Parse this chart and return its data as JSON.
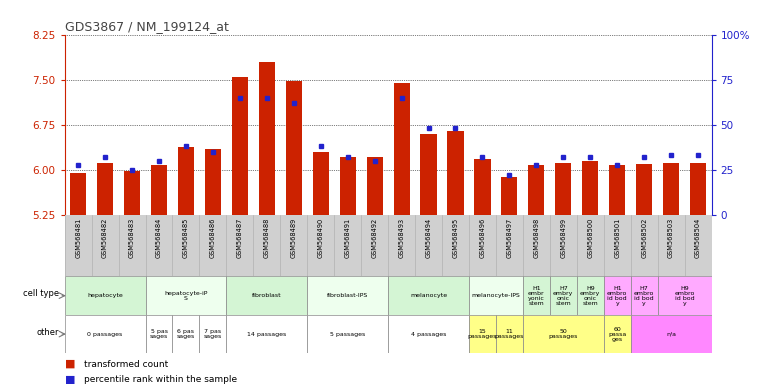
{
  "title": "GDS3867 / NM_199124_at",
  "samples": [
    "GSM568481",
    "GSM568482",
    "GSM568483",
    "GSM568484",
    "GSM568485",
    "GSM568486",
    "GSM568487",
    "GSM568488",
    "GSM568489",
    "GSM568490",
    "GSM568491",
    "GSM568492",
    "GSM568493",
    "GSM568494",
    "GSM568495",
    "GSM568496",
    "GSM568497",
    "GSM568498",
    "GSM568499",
    "GSM568500",
    "GSM568501",
    "GSM568502",
    "GSM568503",
    "GSM568504"
  ],
  "transformed_count": [
    5.95,
    6.12,
    5.98,
    6.08,
    6.38,
    6.35,
    7.55,
    7.8,
    7.48,
    6.3,
    6.22,
    6.22,
    7.45,
    6.6,
    6.65,
    6.18,
    5.88,
    6.08,
    6.12,
    6.15,
    6.08,
    6.1,
    6.12,
    6.12
  ],
  "percentile": [
    28,
    32,
    25,
    30,
    38,
    35,
    65,
    65,
    62,
    38,
    32,
    30,
    65,
    48,
    48,
    32,
    22,
    28,
    32,
    32,
    28,
    32,
    33,
    33
  ],
  "ylim_left": [
    5.25,
    8.25
  ],
  "ylim_right": [
    0,
    100
  ],
  "yticks_left": [
    5.25,
    6.0,
    6.75,
    7.5,
    8.25
  ],
  "yticks_right": [
    0,
    25,
    50,
    75,
    100
  ],
  "bar_color": "#cc2200",
  "dot_color": "#2222cc",
  "cell_types": [
    {
      "label": "hepatocyte",
      "start": 0,
      "end": 3,
      "color": "#d4f5d4"
    },
    {
      "label": "hepatocyte-iP\nS",
      "start": 3,
      "end": 6,
      "color": "#eeffee"
    },
    {
      "label": "fibroblast",
      "start": 6,
      "end": 9,
      "color": "#d4f5d4"
    },
    {
      "label": "fibroblast-IPS",
      "start": 9,
      "end": 12,
      "color": "#eeffee"
    },
    {
      "label": "melanocyte",
      "start": 12,
      "end": 15,
      "color": "#d4f5d4"
    },
    {
      "label": "melanocyte-IPS",
      "start": 15,
      "end": 17,
      "color": "#eeffee"
    },
    {
      "label": "H1\nembr\nyonic\nstem",
      "start": 17,
      "end": 18,
      "color": "#d4f5d4"
    },
    {
      "label": "H7\nembry\nonic\nstem",
      "start": 18,
      "end": 19,
      "color": "#d4f5d4"
    },
    {
      "label": "H9\nembry\nonic\nstem",
      "start": 19,
      "end": 20,
      "color": "#d4f5d4"
    },
    {
      "label": "H1\nembro\nid bod\ny",
      "start": 20,
      "end": 21,
      "color": "#ffaaff"
    },
    {
      "label": "H7\nembro\nid bod\ny",
      "start": 21,
      "end": 22,
      "color": "#ffaaff"
    },
    {
      "label": "H9\nembro\nid bod\ny",
      "start": 22,
      "end": 24,
      "color": "#ffaaff"
    }
  ],
  "other_labels": [
    {
      "label": "0 passages",
      "start": 0,
      "end": 3,
      "color": "#ffffff"
    },
    {
      "label": "5 pas\nsages",
      "start": 3,
      "end": 4,
      "color": "#ffffff"
    },
    {
      "label": "6 pas\nsages",
      "start": 4,
      "end": 5,
      "color": "#ffffff"
    },
    {
      "label": "7 pas\nsages",
      "start": 5,
      "end": 6,
      "color": "#ffffff"
    },
    {
      "label": "14 passages",
      "start": 6,
      "end": 9,
      "color": "#ffffff"
    },
    {
      "label": "5 passages",
      "start": 9,
      "end": 12,
      "color": "#ffffff"
    },
    {
      "label": "4 passages",
      "start": 12,
      "end": 15,
      "color": "#ffffff"
    },
    {
      "label": "15\npassages",
      "start": 15,
      "end": 16,
      "color": "#ffff88"
    },
    {
      "label": "11\npassages",
      "start": 16,
      "end": 17,
      "color": "#ffff88"
    },
    {
      "label": "50\npassages",
      "start": 17,
      "end": 20,
      "color": "#ffff88"
    },
    {
      "label": "60\npassa\nges",
      "start": 20,
      "end": 21,
      "color": "#ffff88"
    },
    {
      "label": "n/a",
      "start": 21,
      "end": 24,
      "color": "#ff88ff"
    }
  ],
  "baseline": 5.25,
  "xtick_bg": "#d0d0d0"
}
